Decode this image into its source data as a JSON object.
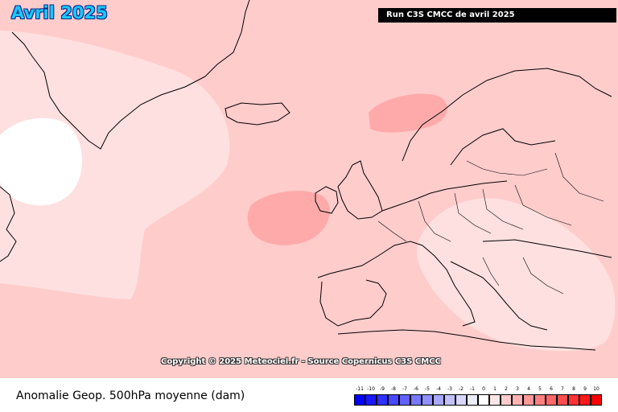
{
  "map": {
    "title": "Avril 2025",
    "run_label": "Run C3S CMCC de avril 2025",
    "copyright": "Copyright © 2025 Meteociel.fr - Source Copernicus C3S CMCC",
    "background_color": "#ffcccc",
    "anomaly_zones": [
      {
        "name": "greenland-low-anomaly",
        "value_band": "0 to 1",
        "color": "#ffe0e0"
      },
      {
        "name": "labrador-zero-anomaly",
        "value_band": "-1 to 0",
        "color": "#ffffff"
      },
      {
        "name": "norwegian-sea-positive",
        "value_band": "2 to 3",
        "color": "#ffaaaa"
      },
      {
        "name": "west-ireland-positive",
        "value_band": "2 to 3",
        "color": "#ffaaaa"
      },
      {
        "name": "balkans-low-anomaly",
        "value_band": "0 to 1",
        "color": "#ffe0e0"
      }
    ]
  },
  "legend": {
    "variable_label": "Anomalie Geop. 500hPa moyenne (dam)",
    "ticks": [
      "-11",
      "-10",
      "-9",
      "-8",
      "-7",
      "-6",
      "-5",
      "-4",
      "-3",
      "-2",
      "-1",
      "0",
      "1",
      "2",
      "3",
      "4",
      "5",
      "6",
      "7",
      "8",
      "9",
      "10"
    ],
    "colors": [
      "#0000ff",
      "#1818ff",
      "#3030ff",
      "#4848ff",
      "#6060ff",
      "#7878ff",
      "#9090ff",
      "#a8a8ff",
      "#c0c0ff",
      "#d8d8ff",
      "#ececff",
      "#ffffff",
      "#ffe6e6",
      "#ffcccc",
      "#ffb3b3",
      "#ff9999",
      "#ff8080",
      "#ff6666",
      "#ff4d4d",
      "#ff3333",
      "#ff1a1a",
      "#ff0000"
    ]
  }
}
